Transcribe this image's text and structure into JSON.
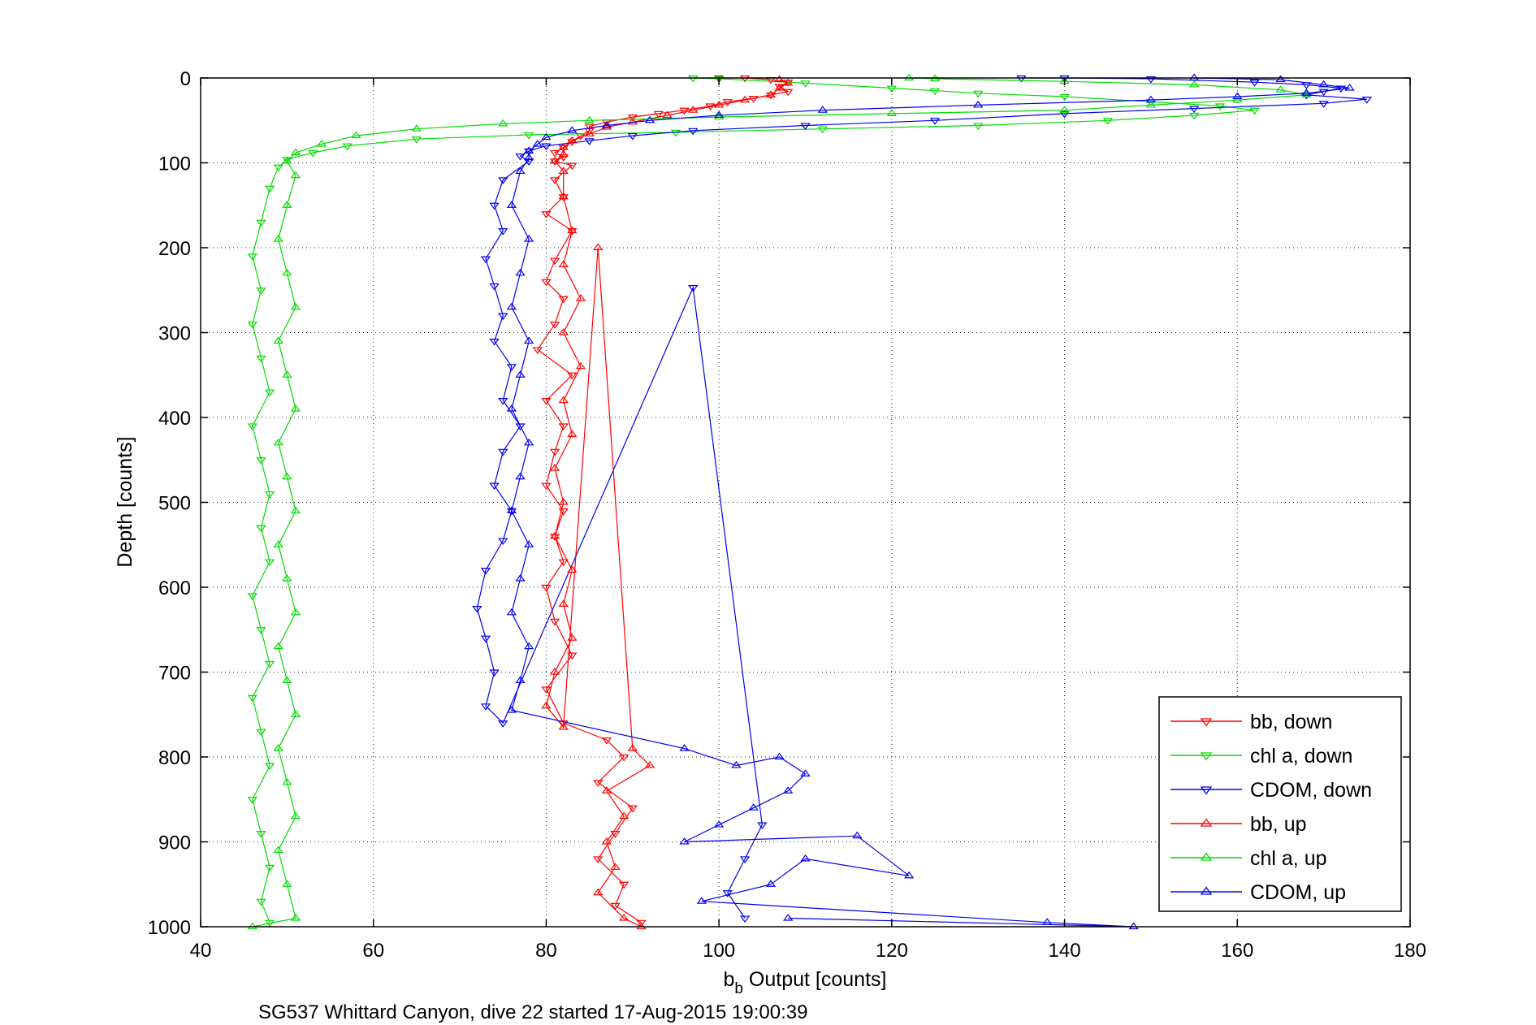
{
  "chart_data": {
    "type": "scatter",
    "title": "",
    "xlabel_main": "b",
    "xlabel_sub": "b",
    "xlabel_rest": " Output [counts]",
    "ylabel": "Depth [counts]",
    "caption": "SG537 Whittard Canyon, dive 22 started 17-Aug-2015 19:00:39",
    "xlim": [
      40,
      180
    ],
    "ylim": [
      0,
      1000
    ],
    "y_reversed": true,
    "grid": true,
    "legend_position": "bottom-right",
    "xticks": [
      40,
      60,
      80,
      100,
      120,
      140,
      160,
      180
    ],
    "yticks": [
      0,
      100,
      200,
      300,
      400,
      500,
      600,
      700,
      800,
      900,
      1000
    ],
    "series": [
      {
        "name": "bb, down",
        "color": "#ff0000",
        "marker": "triangle-down",
        "points": [
          [
            100,
            0
          ],
          [
            103,
            0
          ],
          [
            106,
            2
          ],
          [
            108,
            5
          ],
          [
            107,
            10
          ],
          [
            108,
            16
          ],
          [
            106,
            20
          ],
          [
            104,
            24
          ],
          [
            101,
            28
          ],
          [
            99,
            33
          ],
          [
            96,
            38
          ],
          [
            93,
            42
          ],
          [
            90,
            46
          ],
          [
            87,
            52
          ],
          [
            85,
            57
          ],
          [
            85,
            62
          ],
          [
            84,
            68
          ],
          [
            83,
            75
          ],
          [
            82,
            82
          ],
          [
            81,
            88
          ],
          [
            82,
            93
          ],
          [
            81,
            98
          ],
          [
            83,
            103
          ],
          [
            81,
            120
          ],
          [
            82,
            140
          ],
          [
            80,
            160
          ],
          [
            83,
            180
          ],
          [
            81,
            215
          ],
          [
            80,
            240
          ],
          [
            82,
            260
          ],
          [
            81,
            290
          ],
          [
            79,
            320
          ],
          [
            83,
            350
          ],
          [
            80,
            380
          ],
          [
            82,
            410
          ],
          [
            81,
            440
          ],
          [
            80,
            480
          ],
          [
            82,
            510
          ],
          [
            81,
            540
          ],
          [
            82,
            570
          ],
          [
            80,
            600
          ],
          [
            81,
            640
          ],
          [
            83,
            680
          ],
          [
            80,
            720
          ],
          [
            82,
            760
          ],
          [
            87,
            780
          ],
          [
            89,
            800
          ],
          [
            86,
            830
          ],
          [
            90,
            860
          ],
          [
            88,
            890
          ],
          [
            86,
            920
          ],
          [
            89,
            950
          ],
          [
            88,
            975
          ],
          [
            91,
            995
          ]
        ]
      },
      {
        "name": "chl a, down",
        "color": "#00dd00",
        "marker": "triangle-down",
        "points": [
          [
            97,
            0
          ],
          [
            100,
            1
          ],
          [
            110,
            6
          ],
          [
            120,
            12
          ],
          [
            125,
            15
          ],
          [
            130,
            18
          ],
          [
            140,
            22
          ],
          [
            150,
            28
          ],
          [
            158,
            33
          ],
          [
            162,
            38
          ],
          [
            155,
            44
          ],
          [
            145,
            50
          ],
          [
            130,
            56
          ],
          [
            112,
            60
          ],
          [
            95,
            64
          ],
          [
            78,
            67
          ],
          [
            65,
            72
          ],
          [
            57,
            80
          ],
          [
            53,
            88
          ],
          [
            50,
            96
          ],
          [
            49,
            105
          ],
          [
            48,
            130
          ],
          [
            47,
            170
          ],
          [
            46,
            210
          ],
          [
            47,
            250
          ],
          [
            46,
            290
          ],
          [
            47,
            330
          ],
          [
            48,
            370
          ],
          [
            46,
            410
          ],
          [
            47,
            450
          ],
          [
            48,
            490
          ],
          [
            47,
            530
          ],
          [
            48,
            570
          ],
          [
            46,
            610
          ],
          [
            47,
            650
          ],
          [
            48,
            690
          ],
          [
            46,
            730
          ],
          [
            47,
            770
          ],
          [
            48,
            810
          ],
          [
            46,
            850
          ],
          [
            47,
            890
          ],
          [
            48,
            930
          ],
          [
            47,
            970
          ],
          [
            48,
            995
          ]
        ]
      },
      {
        "name": "CDOM, down",
        "color": "#0000ee",
        "marker": "triangle-down",
        "points": [
          [
            135,
            0
          ],
          [
            140,
            0
          ],
          [
            150,
            1
          ],
          [
            162,
            5
          ],
          [
            168,
            8
          ],
          [
            172,
            12
          ],
          [
            170,
            16
          ],
          [
            168,
            20
          ],
          [
            175,
            25
          ],
          [
            170,
            30
          ],
          [
            155,
            36
          ],
          [
            140,
            42
          ],
          [
            125,
            50
          ],
          [
            110,
            56
          ],
          [
            97,
            62
          ],
          [
            90,
            68
          ],
          [
            85,
            74
          ],
          [
            80,
            80
          ],
          [
            78,
            86
          ],
          [
            77,
            92
          ],
          [
            78,
            98
          ],
          [
            75,
            120
          ],
          [
            74,
            150
          ],
          [
            75,
            180
          ],
          [
            73,
            213
          ],
          [
            74,
            245
          ],
          [
            75,
            280
          ],
          [
            74,
            310
          ],
          [
            76,
            340
          ],
          [
            75,
            380
          ],
          [
            77,
            410
          ],
          [
            75,
            440
          ],
          [
            74,
            480
          ],
          [
            76,
            510
          ],
          [
            75,
            545
          ],
          [
            73,
            580
          ],
          [
            72,
            625
          ],
          [
            73,
            660
          ],
          [
            74,
            700
          ],
          [
            73,
            740
          ],
          [
            75,
            760
          ],
          [
            97,
            247
          ],
          [
            105,
            880
          ],
          [
            103,
            920
          ],
          [
            101,
            960
          ],
          [
            103,
            990
          ]
        ]
      },
      {
        "name": "bb, up",
        "color": "#ff0000",
        "marker": "triangle-up",
        "points": [
          [
            107,
            2
          ],
          [
            108,
            6
          ],
          [
            107,
            12
          ],
          [
            106,
            20
          ],
          [
            103,
            26
          ],
          [
            100,
            32
          ],
          [
            97,
            38
          ],
          [
            94,
            44
          ],
          [
            90,
            52
          ],
          [
            87,
            58
          ],
          [
            85,
            66
          ],
          [
            83,
            74
          ],
          [
            82,
            82
          ],
          [
            82,
            90
          ],
          [
            81,
            98
          ],
          [
            82,
            110
          ],
          [
            82,
            140
          ],
          [
            83,
            180
          ],
          [
            82,
            220
          ],
          [
            84,
            260
          ],
          [
            82,
            300
          ],
          [
            84,
            340
          ],
          [
            82,
            380
          ],
          [
            83,
            420
          ],
          [
            81,
            460
          ],
          [
            82,
            500
          ],
          [
            81,
            540
          ],
          [
            83,
            580
          ],
          [
            82,
            620
          ],
          [
            83,
            660
          ],
          [
            81,
            700
          ],
          [
            80,
            740
          ],
          [
            82,
            765
          ],
          [
            86,
            200
          ],
          [
            90,
            790
          ],
          [
            92,
            810
          ],
          [
            87,
            840
          ],
          [
            89,
            870
          ],
          [
            87,
            900
          ],
          [
            88,
            930
          ],
          [
            86,
            960
          ],
          [
            89,
            990
          ],
          [
            91,
            1000
          ]
        ]
      },
      {
        "name": "chl a, up",
        "color": "#00dd00",
        "marker": "triangle-up",
        "points": [
          [
            122,
            0
          ],
          [
            125,
            1
          ],
          [
            140,
            4
          ],
          [
            155,
            8
          ],
          [
            165,
            14
          ],
          [
            168,
            20
          ],
          [
            160,
            26
          ],
          [
            150,
            32
          ],
          [
            140,
            38
          ],
          [
            120,
            42
          ],
          [
            100,
            46
          ],
          [
            85,
            50
          ],
          [
            75,
            54
          ],
          [
            65,
            60
          ],
          [
            58,
            68
          ],
          [
            54,
            78
          ],
          [
            51,
            88
          ],
          [
            50,
            98
          ],
          [
            51,
            115
          ],
          [
            50,
            150
          ],
          [
            49,
            190
          ],
          [
            50,
            230
          ],
          [
            51,
            270
          ],
          [
            49,
            310
          ],
          [
            50,
            350
          ],
          [
            51,
            390
          ],
          [
            49,
            430
          ],
          [
            50,
            470
          ],
          [
            51,
            510
          ],
          [
            49,
            550
          ],
          [
            50,
            590
          ],
          [
            51,
            630
          ],
          [
            49,
            670
          ],
          [
            50,
            710
          ],
          [
            51,
            750
          ],
          [
            49,
            790
          ],
          [
            50,
            830
          ],
          [
            51,
            870
          ],
          [
            49,
            910
          ],
          [
            50,
            950
          ],
          [
            51,
            990
          ],
          [
            46,
            1000
          ]
        ]
      },
      {
        "name": "CDOM, up",
        "color": "#0000ee",
        "marker": "triangle-up",
        "points": [
          [
            155,
            0
          ],
          [
            165,
            2
          ],
          [
            170,
            8
          ],
          [
            173,
            12
          ],
          [
            168,
            18
          ],
          [
            160,
            22
          ],
          [
            150,
            26
          ],
          [
            130,
            32
          ],
          [
            112,
            38
          ],
          [
            100,
            44
          ],
          [
            92,
            50
          ],
          [
            87,
            56
          ],
          [
            83,
            62
          ],
          [
            80,
            70
          ],
          [
            79,
            78
          ],
          [
            78,
            86
          ],
          [
            78,
            94
          ],
          [
            77,
            110
          ],
          [
            76,
            150
          ],
          [
            78,
            190
          ],
          [
            77,
            230
          ],
          [
            76,
            270
          ],
          [
            78,
            310
          ],
          [
            77,
            350
          ],
          [
            76,
            390
          ],
          [
            78,
            430
          ],
          [
            77,
            470
          ],
          [
            76,
            510
          ],
          [
            78,
            550
          ],
          [
            77,
            590
          ],
          [
            76,
            630
          ],
          [
            78,
            670
          ],
          [
            77,
            710
          ],
          [
            76,
            745
          ],
          [
            96,
            790
          ],
          [
            102,
            810
          ],
          [
            107,
            800
          ],
          [
            110,
            820
          ],
          [
            108,
            840
          ],
          [
            104,
            860
          ],
          [
            100,
            880
          ],
          [
            96,
            900
          ],
          [
            116,
            893
          ],
          [
            122,
            940
          ],
          [
            110,
            920
          ],
          [
            106,
            950
          ],
          [
            98,
            970
          ],
          [
            138,
            995
          ],
          [
            148,
            1000
          ],
          [
            108,
            990
          ]
        ]
      }
    ]
  }
}
